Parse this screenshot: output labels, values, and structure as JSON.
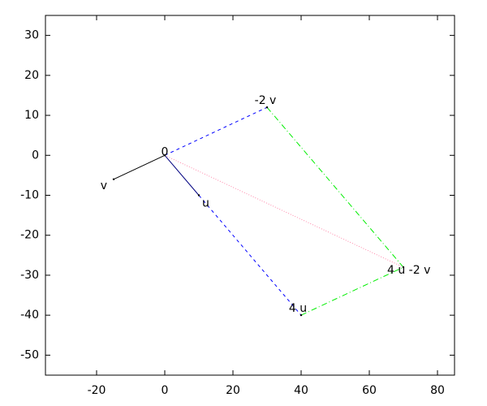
{
  "chart_data": {
    "type": "vector",
    "xlim": [
      -35,
      85
    ],
    "ylim": [
      -55,
      35
    ],
    "xticks": [
      -20,
      0,
      20,
      40,
      60,
      80
    ],
    "yticks": [
      -50,
      -40,
      -30,
      -20,
      -10,
      0,
      10,
      20,
      30
    ],
    "points": [
      {
        "label": "0",
        "x": 0,
        "y": 0
      },
      {
        "label": "v",
        "x": -15,
        "y": -6
      },
      {
        "label": "u",
        "x": 10,
        "y": -10
      },
      {
        "label": "-2 v",
        "x": 30,
        "y": 12
      },
      {
        "label": "4 u",
        "x": 40,
        "y": -40
      },
      {
        "label": "4 u -2 v",
        "x": 70,
        "y": -28
      }
    ],
    "lines": [
      {
        "x": [
          0,
          -15
        ],
        "y": [
          0,
          -6
        ],
        "color": "#000000",
        "style": "solid"
      },
      {
        "x": [
          0,
          10
        ],
        "y": [
          0,
          -10
        ],
        "color": "#000080",
        "style": "solid"
      },
      {
        "x": [
          0,
          30
        ],
        "y": [
          0,
          12
        ],
        "color": "#0000ff",
        "style": "dashed"
      },
      {
        "x": [
          10,
          40
        ],
        "y": [
          -10,
          -40
        ],
        "color": "#0000ff",
        "style": "dashed"
      },
      {
        "x": [
          30,
          70
        ],
        "y": [
          12,
          -28
        ],
        "color": "#00ee00",
        "style": "dashdot"
      },
      {
        "x": [
          40,
          70
        ],
        "y": [
          -40,
          -28
        ],
        "color": "#00ee00",
        "style": "dashdot"
      },
      {
        "x": [
          0,
          70
        ],
        "y": [
          0,
          -28
        ],
        "color": "#ff88aa",
        "style": "dotted"
      }
    ]
  }
}
